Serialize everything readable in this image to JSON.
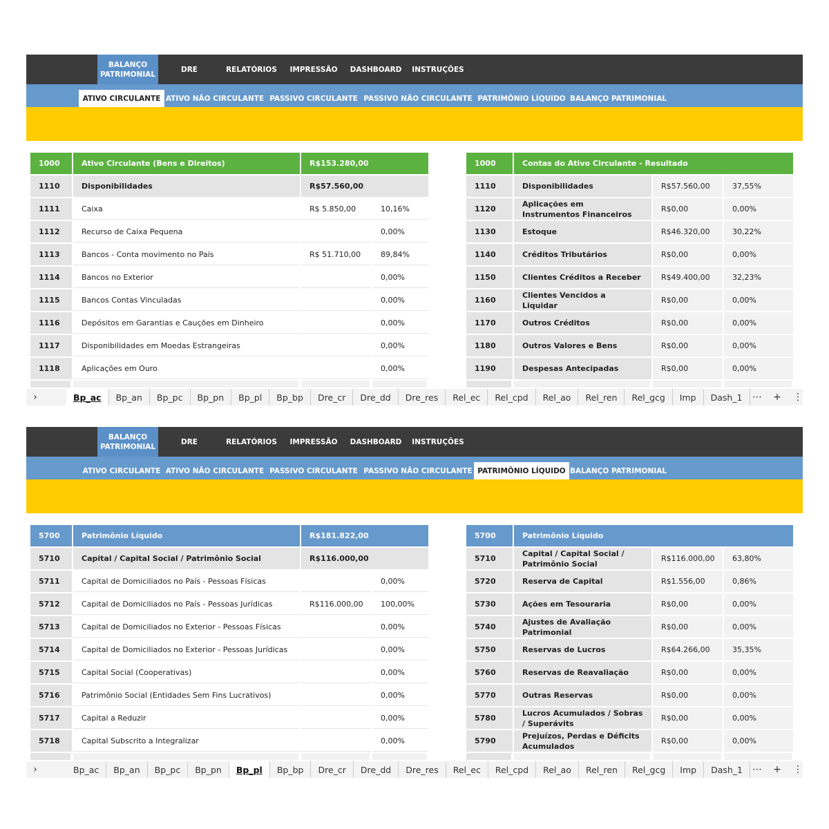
{
  "panels": [
    {
      "main_tabs": [
        "BALANÇO PATRIMONIAL",
        "DRE",
        "RELATÓRIOS",
        "IMPRESSÃO",
        "DASHBOARD",
        "INSTRUÇÕES"
      ],
      "sub_tabs": [
        "ATIVO CIRCULANTE",
        "ATIVO NÃO CIRCULANTE",
        "PASSIVO CIRCULANTE",
        "PASSIVO NÃO CIRCULANTE",
        "PATRIMÔNIO LÍQUIDO",
        "BALANÇO PATRIMONIAL"
      ],
      "left_table": {
        "header": {
          "code": "1000",
          "name": "Ativo Circulante (Bens e Direitos)",
          "value": "R$153.280,00"
        },
        "rows": [
          {
            "code": "1110",
            "name": "Disponibilidades",
            "value": "R$57.560,00"
          },
          {
            "code": "1111",
            "name": "Caixa",
            "value": "R$ 5.850,00",
            "pct": "10,16%"
          },
          {
            "code": "1112",
            "name": "Recurso de Caixa Pequena",
            "pct": "0,00%"
          },
          {
            "code": "1113",
            "name": "Bancos - Conta movimento no País",
            "value": "R$ 51.710,00",
            "pct": "89,84%"
          },
          {
            "code": "1114",
            "name": "Bancos no Exterior",
            "pct": "0,00%"
          },
          {
            "code": "1115",
            "name": "Bancos Contas Vinculadas",
            "pct": "0,00%"
          },
          {
            "code": "1116",
            "name": "Depósitos em Garantias e Cauções em Dinheiro",
            "pct": "0,00%"
          },
          {
            "code": "1117",
            "name": "Disponibilidades em Moedas Estrangeiras",
            "pct": "0,00%"
          },
          {
            "code": "1118",
            "name": "Aplicações em Ouro",
            "pct": "0,00%"
          }
        ]
      },
      "right_table": {
        "header": {
          "code": "1000",
          "name": "Contas do Ativo Circulante - Resultado"
        },
        "rows": [
          {
            "code": "1110",
            "name": "Disponibilidades",
            "value": "R$57.560,00",
            "pct": "37,55%"
          },
          {
            "code": "1120",
            "name": "Aplicações em Instrumentos Financeiros",
            "value": "R$0,00",
            "pct": "0,00%"
          },
          {
            "code": "1130",
            "name": "Estoque",
            "value": "R$46.320,00",
            "pct": "30,22%"
          },
          {
            "code": "1140",
            "name": "Créditos Tributários",
            "value": "R$0,00",
            "pct": "0,00%"
          },
          {
            "code": "1150",
            "name": "Clientes Créditos a Receber",
            "value": "R$49.400,00",
            "pct": "32,23%"
          },
          {
            "code": "1160",
            "name": "Clientes Vencidos a Liquidar",
            "value": "R$0,00",
            "pct": "0,00%"
          },
          {
            "code": "1170",
            "name": "Outros Créditos",
            "value": "R$0,00",
            "pct": "0,00%"
          },
          {
            "code": "1180",
            "name": "Outros Valores e Bens",
            "value": "R$0,00",
            "pct": "0,00%"
          },
          {
            "code": "1190",
            "name": "Despesas Antecipadas",
            "value": "R$0,00",
            "pct": "0,00%"
          }
        ]
      },
      "sheet_tabs": [
        "Bp_ac",
        "Bp_an",
        "Bp_pc",
        "Bp_pn",
        "Bp_pl",
        "Bp_bp",
        "Dre_cr",
        "Dre_dd",
        "Dre_res",
        "Rel_ec",
        "Rel_cpd",
        "Rel_ao",
        "Rel_ren",
        "Rel_gcg",
        "Imp",
        "Dash_1"
      ]
    },
    {
      "main_tabs": [
        "BALANÇO PATRIMONIAL",
        "DRE",
        "RELATÓRIOS",
        "IMPRESSÃO",
        "DASHBOARD",
        "INSTRUÇÕES"
      ],
      "sub_tabs": [
        "ATIVO CIRCULANTE",
        "ATIVO NÃO CIRCULANTE",
        "PASSIVO CIRCULANTE",
        "PASSIVO NÃO CIRCULANTE",
        "PATRIMÔNIO LÍQUIDO",
        "BALANÇO PATRIMONIAL"
      ],
      "left_table": {
        "header": {
          "code": "5700",
          "name": "Patrimônio Líquido",
          "value": "R$181.822,00"
        },
        "rows": [
          {
            "code": "5710",
            "name": "Capital / Capital Social / Patrimônio Social",
            "value": "R$116.000,00"
          },
          {
            "code": "5711",
            "name": "Capital de Domiciliados no País - Pessoas Físicas",
            "pct": "0,00%"
          },
          {
            "code": "5712",
            "name": "Capital de Domiciliados no País - Pessoas Jurídicas",
            "value": "R$116.000,00",
            "pct": "100,00%"
          },
          {
            "code": "5713",
            "name": "Capital de Domiciliados no Exterior - Pessoas Físicas",
            "pct": "0,00%"
          },
          {
            "code": "5714",
            "name": "Capital de Domiciliados no Exterior - Pessoas Jurídicas",
            "pct": "0,00%"
          },
          {
            "code": "5715",
            "name": "Capital Social (Cooperativas)",
            "pct": "0,00%"
          },
          {
            "code": "5716",
            "name": "Patrimônio Social (Entidades Sem Fins Lucrativos)",
            "pct": "0,00%"
          },
          {
            "code": "5717",
            "name": "Capital a Reduzir",
            "pct": "0,00%"
          },
          {
            "code": "5718",
            "name": "Capital Subscrito a Integralizar",
            "pct": "0,00%"
          }
        ]
      },
      "right_table": {
        "header": {
          "code": "5700",
          "name": "Patrimônio Líquido"
        },
        "rows": [
          {
            "code": "5710",
            "name": "Capital / Capital Social / Patrimônio Social",
            "value": "R$116.000,00",
            "pct": "63,80%"
          },
          {
            "code": "5720",
            "name": "Reserva de Capital",
            "value": "R$1.556,00",
            "pct": "0,86%"
          },
          {
            "code": "5730",
            "name": "Ações em Tesouraria",
            "value": "R$0,00",
            "pct": "0,00%"
          },
          {
            "code": "5740",
            "name": "Ajustes de Avaliação Patrimonial",
            "value": "R$0,00",
            "pct": "0,00%"
          },
          {
            "code": "5750",
            "name": "Reservas de Lucros",
            "value": "R$64.266,00",
            "pct": "35,35%"
          },
          {
            "code": "5760",
            "name": "Reservas de Reavaliação",
            "value": "R$0,00",
            "pct": "0,00%"
          },
          {
            "code": "5770",
            "name": "Outras Reservas",
            "value": "R$0,00",
            "pct": "0,00%"
          },
          {
            "code": "5780",
            "name": "Lucros Acumulados / Sobras / Superávits",
            "value": "R$0,00",
            "pct": "0,00%"
          },
          {
            "code": "5790",
            "name": "Prejuízos, Perdas e  Déficits Acumulados",
            "value": "R$0,00",
            "pct": "0,00%"
          }
        ]
      },
      "sheet_tabs": [
        "Bp_ac",
        "Bp_an",
        "Bp_pc",
        "Bp_pn",
        "Bp_pl",
        "Bp_bp",
        "Dre_cr",
        "Dre_dd",
        "Dre_res",
        "Rel_ec",
        "Rel_cpd",
        "Rel_ao",
        "Rel_ren",
        "Rel_gcg",
        "Imp",
        "Dash_1"
      ]
    }
  ]
}
